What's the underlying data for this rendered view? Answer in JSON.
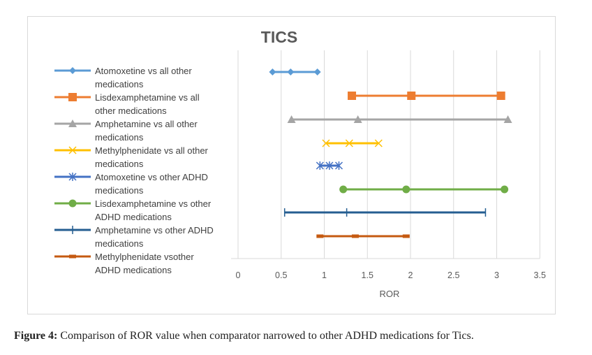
{
  "chart_data": {
    "type": "line",
    "title": "TICS",
    "xlabel": "ROR",
    "ylabel": "",
    "xlim": [
      0,
      3.5
    ],
    "xticks": [
      "0",
      "0.5",
      "1",
      "1.5",
      "2",
      "2.5",
      "3",
      "3.5"
    ],
    "xtick_values": [
      0,
      0.5,
      1,
      1.5,
      2,
      2.5,
      3,
      3.5
    ],
    "grid": "vertical",
    "legend_position": "left",
    "series": [
      {
        "name": "Atomoxetine vs all other medications",
        "color": "#5b9bd5",
        "marker": "diamond",
        "values": [
          0.4,
          0.61,
          0.92
        ]
      },
      {
        "name": "Lisdexamphetamine vs all other medications",
        "color": "#ed7d31",
        "marker": "square",
        "values": [
          1.32,
          2.01,
          3.05
        ]
      },
      {
        "name": "Amphetamine vs all other medications",
        "color": "#a5a5a5",
        "marker": "triangle",
        "values": [
          0.62,
          1.39,
          3.13
        ]
      },
      {
        "name": "Methylphenidate vs all other medications",
        "color": "#ffc000",
        "marker": "x",
        "values": [
          1.02,
          1.29,
          1.63
        ]
      },
      {
        "name": "Atomoxetine vs other ADHD medications",
        "color": "#4472c4",
        "marker": "star",
        "values": [
          0.95,
          1.06,
          1.17
        ]
      },
      {
        "name": "Lisdexamphetamine vs other ADHD medications",
        "color": "#70ad47",
        "marker": "circle",
        "values": [
          1.22,
          1.95,
          3.09
        ]
      },
      {
        "name": "Amphetamine vs other ADHD medications",
        "color": "#255e91",
        "marker": "plus",
        "values": [
          0.54,
          1.26,
          2.87
        ]
      },
      {
        "name": "Methylphenidate vs other ADHD medications",
        "color": "#c55a11",
        "marker": "dash",
        "values": [
          0.95,
          1.36,
          1.95
        ]
      }
    ]
  },
  "legend_lines": [
    [
      "Atomoxetine vs all other",
      "medications"
    ],
    [
      "Lisdexamphetamine vs all",
      "other medications"
    ],
    [
      "Amphetamine vs all other",
      "medications"
    ],
    [
      "Methylphenidate  vs all other",
      "medications"
    ],
    [
      "Atomoxetine vs other ADHD",
      "medications"
    ],
    [
      "Lisdexamphetamine vs other",
      "ADHD medications"
    ],
    [
      "Amphetamine vs other ADHD",
      "medications"
    ],
    [
      "Methylphenidate vsother",
      "ADHD medications"
    ]
  ],
  "caption": {
    "label": "Figure 4:",
    "text": " Comparison of ROR value when comparator narrowed to other ADHD medications for Tics."
  }
}
